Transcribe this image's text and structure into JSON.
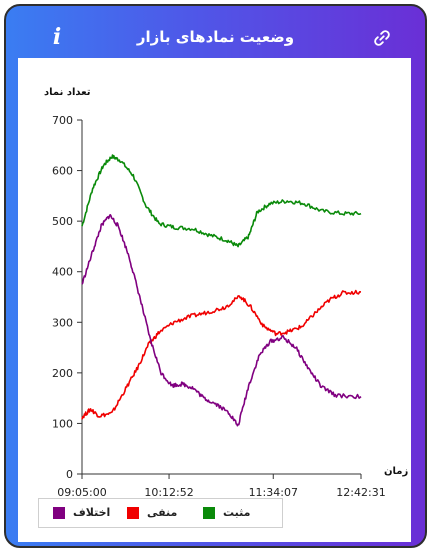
{
  "header": {
    "title": "وضعیت نمادهای بازار",
    "info_label": "i"
  },
  "colors": {
    "positive": "#0a8a0a",
    "negative": "#f00000",
    "difference": "#800080"
  },
  "chart_data": {
    "type": "line",
    "ylabel": "تعداد نماد",
    "xlabel": "زمان",
    "ylim": [
      0,
      700
    ],
    "yticks": [
      0,
      100,
      200,
      300,
      400,
      500,
      600,
      700
    ],
    "xticks": [
      "09:05:00",
      "10:12:52",
      "11:34:07",
      "12:42:31"
    ],
    "grid": false,
    "legend": "bottom",
    "x_ticks_seconds_since_open": [
      0,
      4072,
      8947,
      13051
    ],
    "series": [
      {
        "name": "مثبت",
        "color": "#0a8a0a",
        "points": [
          [
            0,
            490
          ],
          [
            500,
            565
          ],
          [
            1000,
            610
          ],
          [
            1400,
            628
          ],
          [
            1800,
            620
          ],
          [
            2400,
            590
          ],
          [
            3000,
            530
          ],
          [
            3600,
            495
          ],
          [
            4300,
            488
          ],
          [
            5200,
            485
          ],
          [
            6000,
            472
          ],
          [
            6800,
            462
          ],
          [
            7300,
            450
          ],
          [
            7800,
            470
          ],
          [
            8200,
            518
          ],
          [
            8800,
            535
          ],
          [
            9600,
            540
          ],
          [
            10400,
            535
          ],
          [
            11200,
            520
          ],
          [
            12200,
            515
          ],
          [
            13051,
            515
          ]
        ]
      },
      {
        "name": "منفی",
        "color": "#f00000",
        "points": [
          [
            0,
            112
          ],
          [
            400,
            128
          ],
          [
            800,
            115
          ],
          [
            1400,
            120
          ],
          [
            2000,
            165
          ],
          [
            2600,
            210
          ],
          [
            3100,
            255
          ],
          [
            3600,
            280
          ],
          [
            4300,
            300
          ],
          [
            5100,
            312
          ],
          [
            5900,
            320
          ],
          [
            6700,
            330
          ],
          [
            7400,
            352
          ],
          [
            7900,
            330
          ],
          [
            8500,
            292
          ],
          [
            9100,
            277
          ],
          [
            9700,
            282
          ],
          [
            10300,
            292
          ],
          [
            10900,
            318
          ],
          [
            11600,
            345
          ],
          [
            12200,
            358
          ],
          [
            13051,
            360
          ]
        ]
      },
      {
        "name": "اختلاف",
        "color": "#800080",
        "points": [
          [
            0,
            375
          ],
          [
            500,
            440
          ],
          [
            900,
            490
          ],
          [
            1300,
            512
          ],
          [
            1700,
            490
          ],
          [
            2200,
            430
          ],
          [
            2700,
            350
          ],
          [
            3200,
            265
          ],
          [
            3700,
            200
          ],
          [
            4200,
            175
          ],
          [
            4700,
            178
          ],
          [
            5200,
            170
          ],
          [
            5700,
            150
          ],
          [
            6300,
            138
          ],
          [
            6900,
            120
          ],
          [
            7300,
            95
          ],
          [
            7800,
            175
          ],
          [
            8300,
            235
          ],
          [
            8800,
            262
          ],
          [
            9400,
            270
          ],
          [
            10000,
            250
          ],
          [
            10600,
            208
          ],
          [
            11200,
            172
          ],
          [
            11900,
            155
          ],
          [
            13051,
            153
          ]
        ]
      }
    ]
  }
}
